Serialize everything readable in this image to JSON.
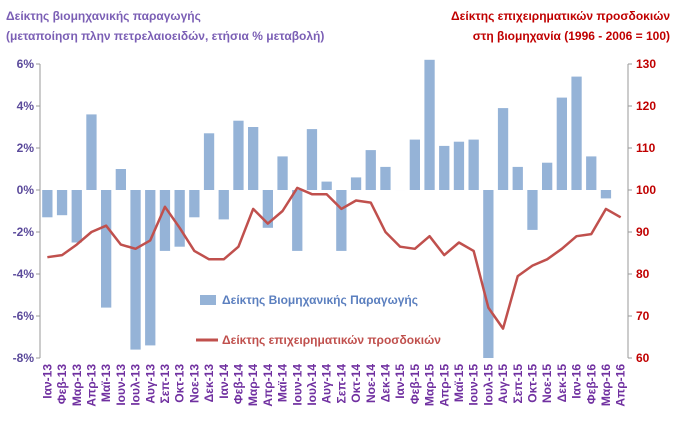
{
  "chart_data": {
    "type": "bar_line",
    "left_title": [
      "Δείκτης βιομηχανικής παραγωγής",
      "(μεταποίηση πλην πετρελαιοειδών, ετήσια % μεταβολή)"
    ],
    "right_title": [
      "Δείκτης επιχειρηματικών προσδοκιών",
      "στη βιομηχανία (1996 - 2006 = 100)"
    ],
    "categories": [
      "Ιαν-13",
      "Φεβ-13",
      "Μαρ-13",
      "Απρ-13",
      "Μαϊ-13",
      "Ιουν-13",
      "Ιουλ-13",
      "Αυγ-13",
      "Σεπ-13",
      "Οκτ-13",
      "Νοε-13",
      "Δεκ-13",
      "Ιαν-14",
      "Φεβ-14",
      "Μαρ-14",
      "Απρ-14",
      "Μαϊ-14",
      "Ιουν-14",
      "Ιουλ-14",
      "Αυγ-14",
      "Σεπ-14",
      "Οκτ-14",
      "Νοε-14",
      "Δεκ-14",
      "Ιαν-15",
      "Φεβ-15",
      "Μαρ-15",
      "Απρ-15",
      "Μαϊ-15",
      "Ιουν-15",
      "Ιουλ-15",
      "Αυγ-15",
      "Σεπ-15",
      "Οκτ-15",
      "Νοε-15",
      "Δεκ-15",
      "Ιαν-16",
      "Φεβ-16",
      "Μαρ-16",
      "Απρ-16"
    ],
    "series": [
      {
        "name": "Δείκτης Βιομηχανικής Παραγωγής",
        "type": "bar",
        "axis": "y",
        "color": "#95b3d7",
        "values": [
          -1.3,
          -1.2,
          -2.5,
          3.6,
          -5.6,
          1.0,
          -7.6,
          -7.4,
          -2.9,
          -2.7,
          -1.3,
          2.7,
          -1.4,
          3.3,
          3.0,
          -1.8,
          1.6,
          -2.9,
          2.9,
          0.4,
          -2.9,
          0.6,
          1.9,
          1.1,
          0,
          2.4,
          6.2,
          2.1,
          2.3,
          2.4,
          -8.0,
          3.9,
          1.1,
          -1.9,
          1.3,
          4.4,
          5.4,
          1.6,
          -0.4,
          null
        ]
      },
      {
        "name": "Δείκτης επιχειρηματικών προσδοκιών",
        "type": "line",
        "axis": "y2",
        "color": "#c0504d",
        "values": [
          84,
          84.5,
          87,
          90,
          91.5,
          87,
          86,
          88,
          96,
          91,
          85.5,
          83.5,
          83.5,
          86.5,
          95.5,
          92,
          95,
          100.5,
          99,
          99,
          95.5,
          97.5,
          97,
          90,
          86.5,
          86,
          89,
          84.5,
          87.5,
          85.5,
          72,
          67,
          79.5,
          82,
          83.5,
          86,
          89,
          89.5,
          95.5,
          93.5
        ]
      }
    ],
    "ylim": [
      -8,
      6
    ],
    "yticks": [
      {
        "value": -8,
        "label": "-8%"
      },
      {
        "value": -6,
        "label": "-6%"
      },
      {
        "value": -4,
        "label": "-4%"
      },
      {
        "value": -2,
        "label": "-2%"
      },
      {
        "value": 0,
        "label": "0%"
      },
      {
        "value": 2,
        "label": "2%"
      },
      {
        "value": 4,
        "label": "4%"
      },
      {
        "value": 6,
        "label": "6%"
      }
    ],
    "y2lim": [
      60,
      130
    ],
    "y2ticks": [
      60,
      70,
      80,
      90,
      100,
      110,
      120,
      130
    ]
  }
}
